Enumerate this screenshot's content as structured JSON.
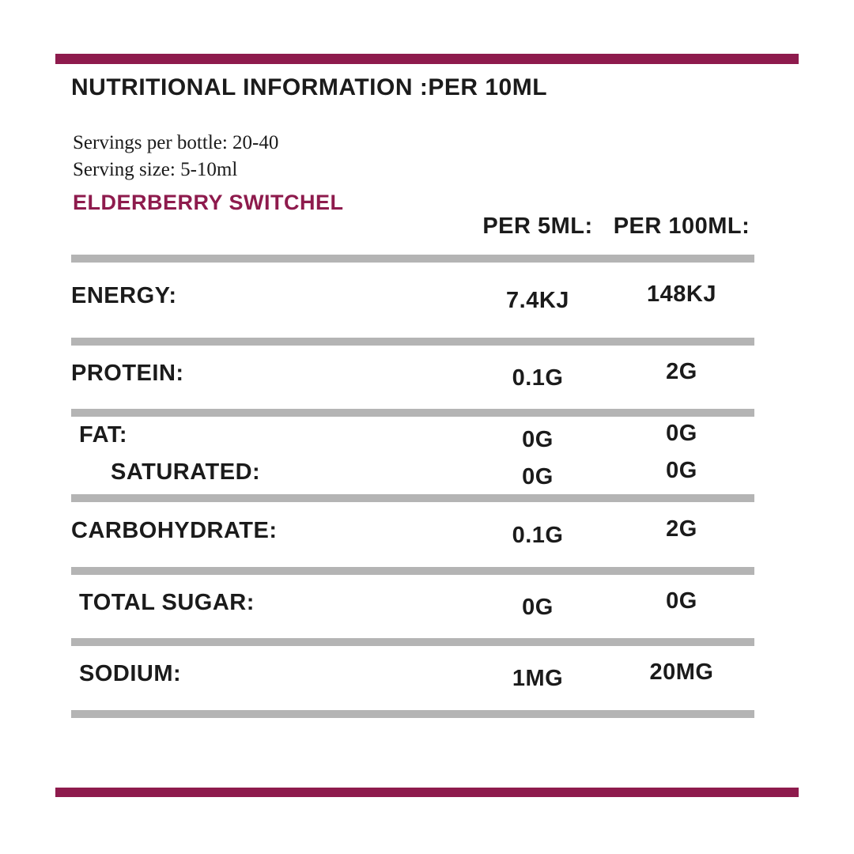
{
  "colors": {
    "accent": "#8E1B4D",
    "divider": "#B4B4B4",
    "text": "#1B1B1B"
  },
  "header": {
    "title": "NUTRITIONAL INFORMATION :PER 10ML",
    "servings_line": "Servings per bottle: 20-40",
    "serving_size_line": "Serving size: 5-10ml",
    "product_name": "ELDERBERRY SWITCHEL"
  },
  "table": {
    "column_headers": [
      "PER 5ML:",
      "PER 100ML:"
    ],
    "groups": [
      {
        "rows": [
          {
            "label": "ENERGY:",
            "per_5ml": "7.4KJ",
            "per_100ml": "148KJ"
          }
        ]
      },
      {
        "rows": [
          {
            "label": "PROTEIN:",
            "per_5ml": "0.1G",
            "per_100ml": "2G"
          }
        ]
      },
      {
        "rows": [
          {
            "label": "FAT:",
            "per_5ml": "0G",
            "per_100ml": "0G"
          },
          {
            "label": "SATURATED:",
            "per_5ml": "0G",
            "per_100ml": "0G"
          }
        ]
      },
      {
        "rows": [
          {
            "label": "CARBOHYDRATE:",
            "per_5ml": "0.1G",
            "per_100ml": "2G"
          }
        ]
      },
      {
        "rows": [
          {
            "label": "TOTAL SUGAR:",
            "per_5ml": "0G",
            "per_100ml": "0G"
          }
        ]
      },
      {
        "rows": [
          {
            "label": "SODIUM:",
            "per_5ml": "1MG",
            "per_100ml": "20MG"
          }
        ]
      }
    ]
  }
}
